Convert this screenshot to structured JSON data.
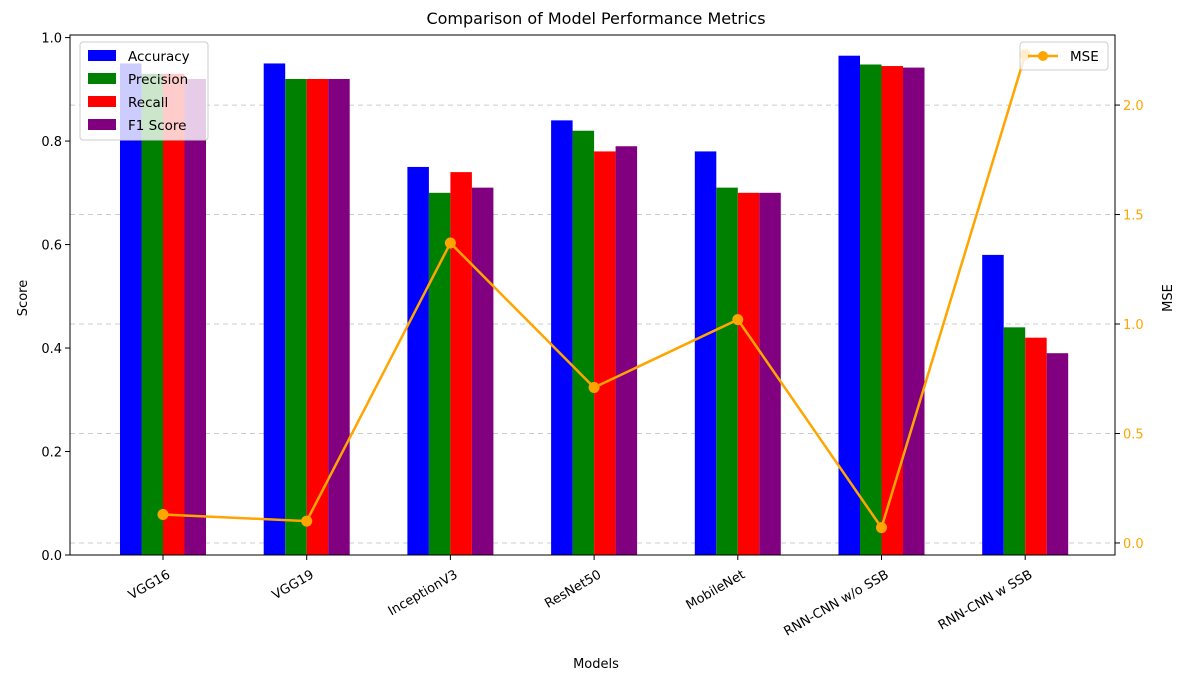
{
  "chart_data": {
    "type": "bar",
    "title": "Comparison of Model Performance Metrics",
    "xlabel": "Models",
    "ylabel": "Score",
    "y2label": "MSE",
    "categories": [
      "VGG16",
      "VGG19",
      "InceptionV3",
      "ResNet50",
      "MobileNet",
      "RNN-CNN w/o SSB",
      "RNN-CNN w SSB"
    ],
    "ylim": [
      0,
      1.0
    ],
    "y2lim": [
      0,
      2.25
    ],
    "yticks": [
      "0.0",
      "0.2",
      "0.4",
      "0.6",
      "0.8",
      "1.0"
    ],
    "y2ticks": [
      "0.0",
      "0.5",
      "1.0",
      "1.5",
      "2.0"
    ],
    "grid": "horizontal dashed",
    "series": [
      {
        "name": "Accuracy",
        "color": "#0000ff",
        "values": [
          0.95,
          0.95,
          0.75,
          0.84,
          0.78,
          0.965,
          0.58
        ]
      },
      {
        "name": "Precision",
        "color": "#008000",
        "values": [
          0.93,
          0.92,
          0.7,
          0.82,
          0.71,
          0.948,
          0.44
        ]
      },
      {
        "name": "Recall",
        "color": "#ff0000",
        "values": [
          0.93,
          0.92,
          0.74,
          0.78,
          0.7,
          0.945,
          0.42
        ]
      },
      {
        "name": "F1 Score",
        "color": "#800080",
        "values": [
          0.92,
          0.92,
          0.71,
          0.79,
          0.7,
          0.942,
          0.39
        ]
      }
    ],
    "line_series": {
      "name": "MSE",
      "color": "#ffa500",
      "axis": "right",
      "values": [
        0.13,
        0.1,
        1.37,
        0.71,
        1.02,
        0.07,
        2.23
      ]
    },
    "legend_bars": "top-left",
    "legend_line": "top-right"
  }
}
